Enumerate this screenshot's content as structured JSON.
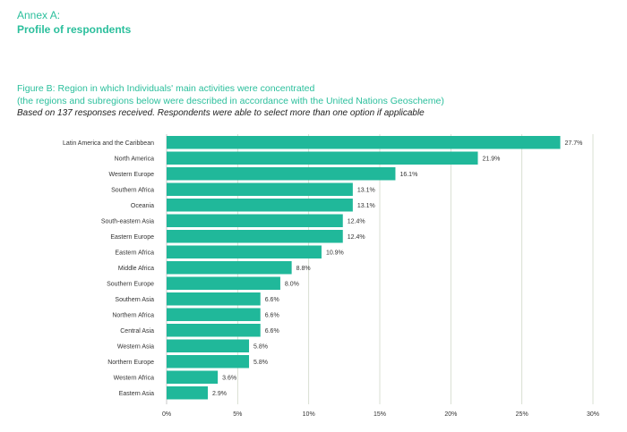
{
  "header": {
    "annex": "Annex A:",
    "title": "Profile of respondents"
  },
  "figure": {
    "title": "Figure B: Region in which Individuals' main activities were concentrated",
    "subtitle": "(the regions and subregions below were described in accordance with the United Nations Geoscheme)",
    "note": "Based on 137 responses received. Respondents were able to select more than one option if applicable"
  },
  "chart_data": {
    "type": "bar",
    "orientation": "horizontal",
    "categories": [
      "Latin America and the Caribbean",
      "North America",
      "Western Europe",
      "Southern Africa",
      "Oceania",
      "South-eastern Asia",
      "Eastern Europe",
      "Eastern Africa",
      "Middle Africa",
      "Southern Europe",
      "Southern Asia",
      "Northern Africa",
      "Central Asia",
      "Western Asia",
      "Northern Europe",
      "Western Africa",
      "Eastern Asia"
    ],
    "values": [
      27.7,
      21.9,
      16.1,
      13.1,
      13.1,
      12.4,
      12.4,
      10.9,
      8.8,
      8.0,
      6.6,
      6.6,
      6.6,
      5.8,
      5.8,
      3.6,
      2.9
    ],
    "data_labels": [
      "27.7%",
      "21.9%",
      "16.1%",
      "13.1%",
      "13.1%",
      "12.4%",
      "12.4%",
      "10.9%",
      "8.8%",
      "8.0%",
      "6.6%",
      "6.6%",
      "6.6%",
      "5.8%",
      "5.8%",
      "3.6%",
      "2.9%"
    ],
    "xlim": [
      0,
      30
    ],
    "ticks": [
      0,
      5,
      10,
      15,
      20,
      25,
      30
    ],
    "tick_labels": [
      "0%",
      "5%",
      "10%",
      "15%",
      "20%",
      "25%",
      "30%"
    ],
    "grid": "vertical",
    "bar_color": "#20b89a"
  }
}
